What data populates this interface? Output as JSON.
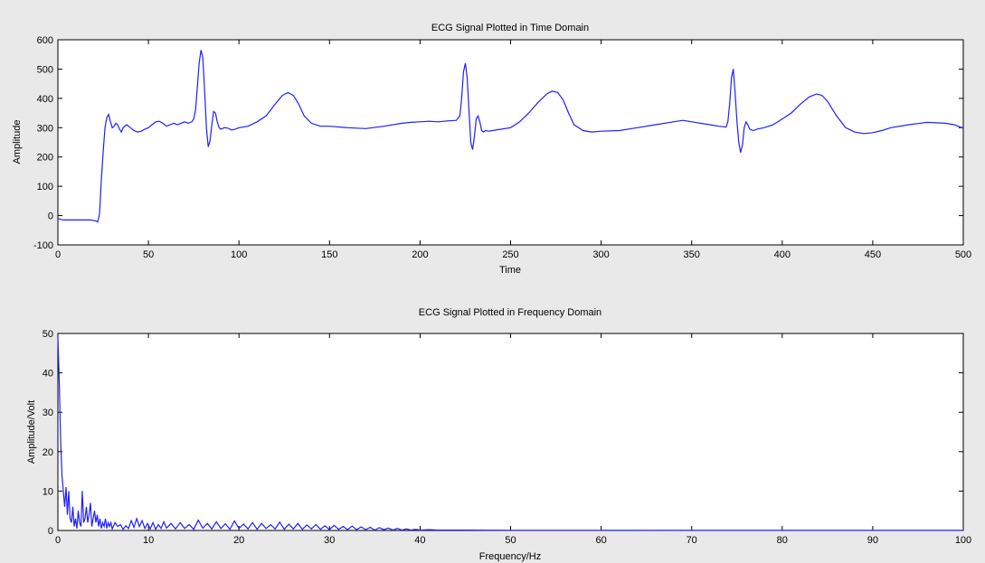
{
  "colors": {
    "figure_bg": "#e9e9e9",
    "axes_bg": "#ffffff",
    "line": "#1f1fff",
    "axis": "#000000"
  },
  "chart_data": [
    {
      "type": "line",
      "title": "ECG Signal Plotted in Time Domain",
      "xlabel": "Time",
      "ylabel": "Amplitude",
      "xlim": [
        0,
        500
      ],
      "ylim": [
        -100,
        600
      ],
      "xticks": [
        0,
        50,
        100,
        150,
        200,
        250,
        300,
        350,
        400,
        450,
        500
      ],
      "yticks": [
        -100,
        0,
        100,
        200,
        300,
        400,
        500,
        600
      ],
      "grid": false,
      "series": [
        {
          "x": [
            0,
            3,
            8,
            13,
            18,
            21,
            22,
            23,
            24,
            25,
            26,
            27,
            28,
            29,
            30,
            31,
            32,
            33,
            34,
            35,
            36,
            38,
            40,
            42,
            44,
            46,
            48,
            50,
            52,
            54,
            56,
            58,
            60,
            62,
            64,
            66,
            68,
            70,
            72,
            74,
            75,
            76,
            77,
            78,
            79,
            80,
            81,
            82,
            83,
            84,
            85,
            86,
            87,
            88,
            89,
            90,
            92,
            94,
            96,
            98,
            100,
            105,
            110,
            115,
            120,
            124,
            127,
            130,
            133,
            136,
            140,
            145,
            150,
            160,
            170,
            180,
            190,
            195,
            200,
            205,
            210,
            215,
            220,
            222,
            223,
            224,
            225,
            226,
            227,
            228,
            229,
            230,
            231,
            232,
            233,
            234,
            235,
            236,
            238,
            240,
            245,
            250,
            255,
            260,
            265,
            270,
            273,
            276,
            279,
            282,
            285,
            290,
            295,
            300,
            310,
            320,
            330,
            340,
            345,
            350,
            360,
            365,
            369,
            370,
            371,
            372,
            373,
            374,
            375,
            376,
            377,
            378,
            379,
            380,
            381,
            382,
            384,
            386,
            390,
            395,
            400,
            405,
            410,
            415,
            419,
            422,
            425,
            430,
            435,
            440,
            445,
            450,
            455,
            460,
            470,
            480,
            490,
            495,
            500
          ],
          "y": [
            -10,
            -15,
            -15,
            -15,
            -15,
            -18,
            -22,
            5,
            120,
            220,
            300,
            335,
            345,
            320,
            300,
            305,
            315,
            310,
            295,
            285,
            300,
            310,
            300,
            290,
            285,
            288,
            295,
            300,
            310,
            320,
            322,
            315,
            305,
            310,
            315,
            310,
            315,
            320,
            315,
            320,
            330,
            360,
            440,
            520,
            565,
            540,
            430,
            300,
            235,
            255,
            310,
            355,
            350,
            320,
            300,
            295,
            300,
            298,
            292,
            295,
            300,
            305,
            320,
            340,
            380,
            410,
            420,
            410,
            380,
            340,
            315,
            305,
            305,
            300,
            297,
            305,
            315,
            318,
            320,
            322,
            320,
            323,
            325,
            340,
            400,
            490,
            520,
            470,
            360,
            250,
            225,
            270,
            330,
            340,
            320,
            290,
            285,
            290,
            288,
            290,
            295,
            300,
            320,
            350,
            385,
            415,
            425,
            420,
            395,
            350,
            310,
            290,
            285,
            288,
            290,
            300,
            310,
            320,
            325,
            320,
            310,
            305,
            302,
            320,
            380,
            470,
            500,
            420,
            320,
            250,
            215,
            240,
            300,
            320,
            310,
            295,
            290,
            295,
            300,
            310,
            330,
            350,
            380,
            405,
            415,
            410,
            390,
            340,
            300,
            285,
            280,
            283,
            290,
            300,
            310,
            318,
            315,
            310,
            298
          ]
        }
      ]
    },
    {
      "type": "line",
      "title": "ECG Signal Plotted in Frequency Domain",
      "xlabel": "Frequency/Hz",
      "ylabel": "Amplitude/Volt",
      "xlim": [
        0,
        100
      ],
      "ylim": [
        0,
        50
      ],
      "xticks": [
        0,
        10,
        20,
        30,
        40,
        50,
        60,
        70,
        80,
        90,
        100
      ],
      "yticks": [
        0,
        10,
        20,
        30,
        40,
        50
      ],
      "grid": false,
      "series": [
        {
          "x": [
            0,
            0.15,
            0.3,
            0.45,
            0.6,
            0.75,
            0.9,
            1.05,
            1.2,
            1.35,
            1.5,
            1.65,
            1.8,
            1.95,
            2.1,
            2.25,
            2.4,
            2.55,
            2.7,
            2.85,
            3.0,
            3.15,
            3.3,
            3.45,
            3.6,
            3.75,
            3.9,
            4.05,
            4.2,
            4.35,
            4.5,
            4.65,
            4.8,
            4.95,
            5.1,
            5.25,
            5.4,
            5.55,
            5.7,
            5.85,
            6.0,
            6.3,
            6.6,
            6.9,
            7.2,
            7.5,
            7.8,
            8.1,
            8.4,
            8.7,
            9.0,
            9.3,
            9.6,
            9.9,
            10.2,
            10.5,
            10.8,
            11.1,
            11.4,
            11.7,
            12.0,
            12.5,
            13.0,
            13.5,
            14.0,
            14.5,
            15.0,
            15.5,
            16.0,
            16.5,
            17.0,
            17.5,
            18.0,
            18.5,
            19.0,
            19.5,
            20.0,
            20.5,
            21.0,
            21.5,
            22.0,
            22.5,
            23.0,
            23.5,
            24.0,
            24.5,
            25.0,
            25.5,
            26.0,
            26.5,
            27.0,
            27.5,
            28.0,
            28.5,
            29.0,
            29.5,
            30.0,
            30.5,
            31.0,
            31.5,
            32.0,
            32.5,
            33.0,
            33.5,
            34.0,
            34.5,
            35.0,
            35.5,
            36.0,
            36.5,
            37.0,
            37.5,
            38.0,
            38.5,
            39.0,
            39.5,
            40.0,
            41.0,
            42.0,
            45.0,
            50.0,
            60.0,
            70.0,
            80.0,
            90.0,
            100.0
          ],
          "y": [
            49,
            38,
            23,
            14,
            10,
            6,
            11,
            4,
            10,
            3,
            2,
            6,
            1,
            3,
            0.5,
            5,
            2,
            1,
            10,
            2,
            3,
            6,
            2,
            4,
            7,
            1,
            3,
            5,
            2,
            4,
            1,
            3,
            0.5,
            2,
            1,
            3,
            0.5,
            2,
            1,
            2,
            0.4,
            2,
            1,
            1.5,
            0.3,
            1.2,
            0.5,
            2.5,
            0.8,
            3.0,
            1.0,
            2.5,
            0.5,
            1.8,
            0.4,
            2.0,
            0.3,
            1.5,
            0.5,
            2.2,
            0.6,
            1.8,
            0.4,
            2.0,
            0.5,
            1.5,
            0.3,
            2.6,
            0.6,
            1.8,
            0.4,
            2.2,
            0.5,
            1.7,
            0.3,
            2.4,
            0.5,
            1.6,
            0.4,
            2.0,
            0.3,
            1.8,
            0.5,
            1.5,
            0.4,
            2.1,
            0.3,
            1.6,
            0.4,
            1.8,
            0.3,
            1.4,
            0.4,
            1.5,
            0.3,
            1.2,
            0.2,
            1.3,
            0.3,
            1.0,
            0.2,
            1.1,
            0.2,
            0.9,
            0.2,
            0.8,
            0.1,
            0.7,
            0.2,
            0.6,
            0.1,
            0.5,
            0.1,
            0.4,
            0.1,
            0.3,
            0.1,
            0.2,
            0.1,
            0.1,
            0.05,
            0.05,
            0.02,
            0.02,
            0.02,
            0.02
          ]
        }
      ]
    }
  ]
}
